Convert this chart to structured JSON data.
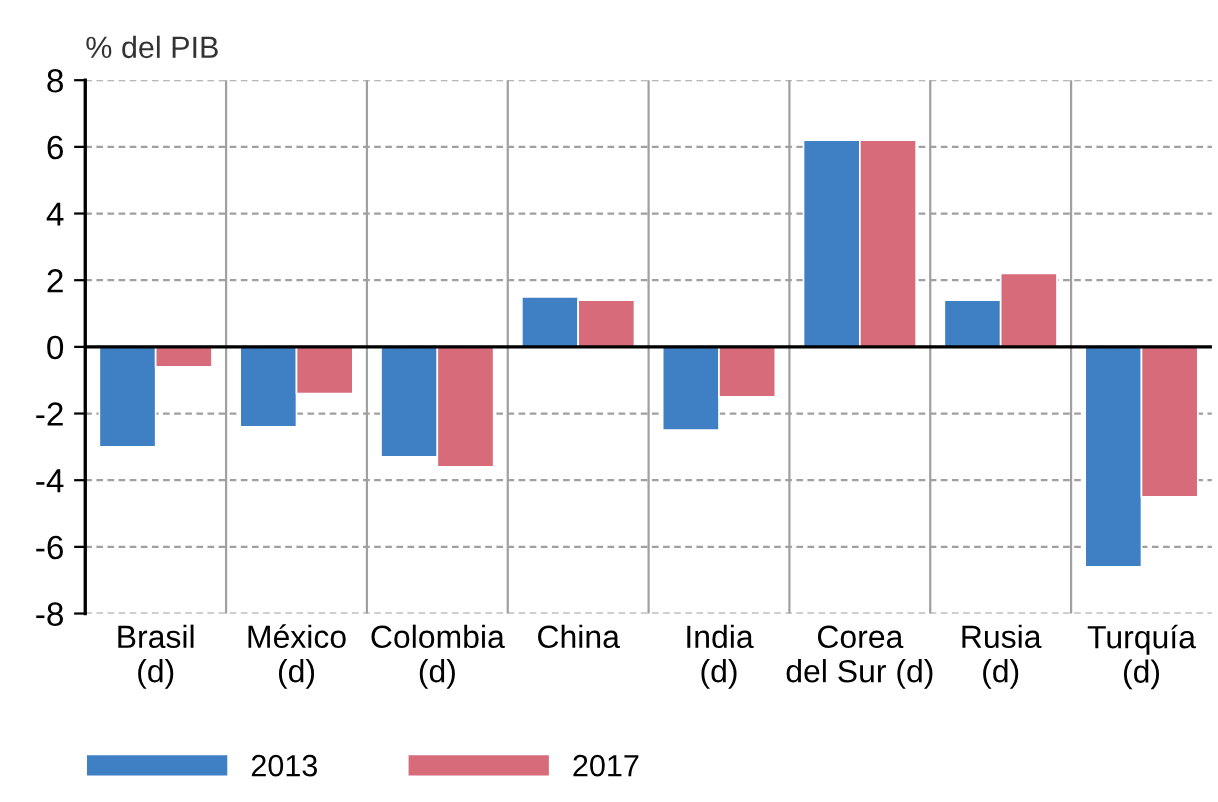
{
  "chart_data": {
    "type": "bar",
    "ylabel": "% del PIB",
    "categories": [
      "Brasil\n(d)",
      "México\n(d)",
      "Colombia\n(d)",
      "China",
      "India\n(d)",
      "Corea\ndel Sur (d)",
      "Rusia\n(d)",
      "Turquía\n(d)"
    ],
    "series": [
      {
        "name": "2013",
        "color": "#3f7fc4",
        "values": [
          -3.0,
          -2.4,
          -3.3,
          1.5,
          -2.5,
          6.2,
          1.4,
          -6.6
        ]
      },
      {
        "name": "2017",
        "color": "#d86b7a",
        "values": [
          -0.6,
          -1.4,
          -3.6,
          1.4,
          -1.5,
          6.2,
          2.2,
          -4.5
        ]
      }
    ],
    "ylim": [
      -8,
      8
    ],
    "yticks": [
      8,
      6,
      4,
      2,
      0,
      -2,
      -4,
      -6,
      -8
    ],
    "grid": true,
    "legend": "bottom left"
  }
}
